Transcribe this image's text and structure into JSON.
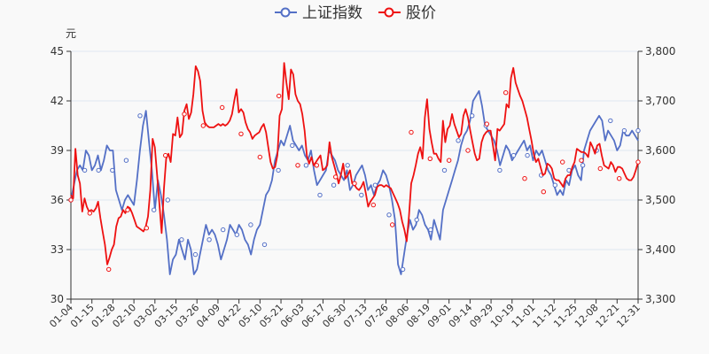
{
  "chart_data": {
    "type": "line",
    "title": "",
    "legend": [
      "上证指数",
      "股价"
    ],
    "left_axis_unit": "元",
    "left_ylim": [
      30,
      45
    ],
    "left_ticks": [
      "30",
      "33",
      "36",
      "39",
      "42",
      "45"
    ],
    "right_ylim": [
      3300,
      3800
    ],
    "right_ticks": [
      "3,300",
      "3,400",
      "3,500",
      "3,600",
      "3,700",
      "3,800"
    ],
    "x_labels": [
      "01-04",
      "01-15",
      "01-28",
      "02-10",
      "03-02",
      "03-15",
      "03-26",
      "04-09",
      "04-22",
      "05-10",
      "05-21",
      "06-03",
      "06-17",
      "06-30",
      "07-13",
      "07-26",
      "08-06",
      "08-19",
      "09-01",
      "09-14",
      "09-29",
      "10-19",
      "11-01",
      "11-12",
      "11-25",
      "12-08",
      "12-21",
      "12-31"
    ],
    "colors": {
      "index": "#5470c6",
      "price": "#ee1111"
    },
    "series": [
      {
        "name": "上证指数",
        "axis": "right",
        "values": [
          3500,
          3530,
          3560,
          3570,
          3560,
          3600,
          3590,
          3560,
          3570,
          3590,
          3560,
          3580,
          3610,
          3600,
          3600,
          3520,
          3500,
          3480,
          3500,
          3510,
          3500,
          3490,
          3540,
          3600,
          3650,
          3680,
          3620,
          3560,
          3480,
          3540,
          3510,
          3470,
          3420,
          3350,
          3380,
          3390,
          3420,
          3400,
          3380,
          3420,
          3400,
          3350,
          3360,
          3390,
          3420,
          3450,
          3430,
          3440,
          3430,
          3410,
          3380,
          3400,
          3420,
          3450,
          3440,
          3430,
          3450,
          3440,
          3420,
          3410,
          3390,
          3420,
          3440,
          3450,
          3480,
          3510,
          3520,
          3540,
          3580,
          3600,
          3620,
          3610,
          3630,
          3650,
          3620,
          3610,
          3600,
          3610,
          3590,
          3580,
          3600,
          3560,
          3530,
          3540,
          3550,
          3560,
          3600,
          3590,
          3580,
          3560,
          3550,
          3540,
          3560,
          3520,
          3530,
          3550,
          3560,
          3570,
          3550,
          3520,
          3530,
          3510,
          3530,
          3540,
          3560,
          3550,
          3530,
          3500,
          3460,
          3370,
          3350,
          3390,
          3430,
          3460,
          3440,
          3450,
          3480,
          3470,
          3450,
          3440,
          3420,
          3460,
          3440,
          3420,
          3480,
          3500,
          3520,
          3540,
          3560,
          3580,
          3610,
          3630,
          3640,
          3660,
          3700,
          3710,
          3720,
          3690,
          3650,
          3640,
          3630,
          3620,
          3600,
          3570,
          3590,
          3610,
          3600,
          3580,
          3590,
          3600,
          3610,
          3620,
          3600,
          3610,
          3580,
          3600,
          3590,
          3600,
          3580,
          3560,
          3550,
          3530,
          3510,
          3520,
          3510,
          3540,
          3530,
          3560,
          3570,
          3550,
          3540,
          3600,
          3620,
          3640,
          3650,
          3660,
          3670,
          3660,
          3620,
          3640,
          3630,
          3620,
          3600,
          3610,
          3640,
          3630,
          3630,
          3640,
          3630,
          3620
        ],
        "markers": [
          3500,
          3560,
          3560,
          3560,
          3580,
          3670,
          3480,
          3500,
          3420,
          3390,
          3420,
          3440,
          3430,
          3450,
          3410,
          3560,
          3610,
          3570,
          3510,
          3530,
          3570,
          3510,
          3530,
          3470,
          3360,
          3460,
          3440,
          3560,
          3620,
          3670,
          3650,
          3560,
          3590,
          3590,
          3550,
          3530,
          3560,
          3570,
          3600,
          3660,
          3640,
          3640
        ]
      },
      {
        "name": "股价",
        "axis": "left",
        "values": [
          36.3,
          36.1,
          39.1,
          37.5,
          37.0,
          35.3,
          36.1,
          35.6,
          35.3,
          35.4,
          35.3,
          35.5,
          35.9,
          34.9,
          34.1,
          33.3,
          32.1,
          32.5,
          33.0,
          33.3,
          34.4,
          34.9,
          35.0,
          35.4,
          35.2,
          35.6,
          35.5,
          35.2,
          34.8,
          34.4,
          34.3,
          34.2,
          34.1,
          34.4,
          35.0,
          36.6,
          39.7,
          39.2,
          37.5,
          35.8,
          34.0,
          36.7,
          38.5,
          38.8,
          38.3,
          40.0,
          39.9,
          41.0,
          39.8,
          40.0,
          41.4,
          41.8,
          40.9,
          41.3,
          42.4,
          44.1,
          43.8,
          43.2,
          41.4,
          40.7,
          40.5,
          40.4,
          40.4,
          40.4,
          40.5,
          40.6,
          40.5,
          40.6,
          40.5,
          40.6,
          40.8,
          41.2,
          42.0,
          42.7,
          41.3,
          41.5,
          41.3,
          40.7,
          40.3,
          40.1,
          39.7,
          39.9,
          40.0,
          40.1,
          40.4,
          40.6,
          40.1,
          39.2,
          38.3,
          37.9,
          38.0,
          38.7,
          41.1,
          41.5,
          44.3,
          43.1,
          42.1,
          43.9,
          43.6,
          42.4,
          42.0,
          41.8,
          41.2,
          40.2,
          38.7,
          38.2,
          38.6,
          38.1,
          38.3,
          38.5,
          38.7,
          37.8,
          37.9,
          38.1,
          39.5,
          38.6,
          38.1,
          37.6,
          37.0,
          37.5,
          38.2,
          37.3,
          37.5,
          37.8,
          37.0,
          36.9,
          36.7,
          36.6,
          36.8,
          37.1,
          36.4,
          35.6,
          35.9,
          36.1,
          36.3,
          36.8,
          36.9,
          36.9,
          36.8,
          36.9,
          36.8,
          36.7,
          36.4,
          36.1,
          35.8,
          35.4,
          34.7,
          34.2,
          33.5,
          35.0,
          37.0,
          37.5,
          38.1,
          38.8,
          39.2,
          38.5,
          41.0,
          42.1,
          40.3,
          39.5,
          38.8,
          38.8,
          38.5,
          38.3,
          40.8,
          39.5,
          40.3,
          40.5,
          41.2,
          40.6,
          40.2,
          39.8,
          40.0,
          41.1,
          41.5,
          41.0,
          40.2,
          39.5,
          38.8,
          38.4,
          38.5,
          39.5,
          39.9,
          40.1,
          40.2,
          40.2,
          39.3,
          38.4,
          40.3,
          40.2,
          40.4,
          40.6,
          41.8,
          41.6,
          43.4,
          44.0,
          43.1,
          42.7,
          42.3,
          42.0,
          41.5,
          41.0,
          40.3,
          39.6,
          38.8,
          38.3,
          38.5,
          38.0,
          37.5,
          37.6,
          38.2,
          38.1,
          37.9,
          37.3,
          37.2,
          37.2,
          37.0,
          36.8,
          37.3,
          37.5,
          37.5,
          38.0,
          38.3,
          39.1,
          39.0,
          38.9,
          38.9,
          38.8,
          38.6,
          39.5,
          39.2,
          38.8,
          39.3,
          39.4,
          38.7,
          38.1,
          38.0,
          37.9,
          38.3,
          38.1,
          37.7,
          38.0,
          38.0,
          37.9,
          37.6,
          37.3,
          37.2,
          37.2,
          37.4,
          37.8,
          38.3
        ],
        "markers": [
          36.0,
          35.2,
          31.8,
          35.4,
          34.3,
          38.7,
          41.2,
          40.5,
          41.6,
          40.0,
          38.6,
          42.3,
          38.1,
          38.1,
          37.4,
          37.0,
          35.7,
          34.5,
          40.1,
          38.5,
          38.4,
          39.0,
          40.6,
          42.5,
          37.3,
          36.5,
          38.3,
          38.4,
          37.9,
          37.3,
          38.3
        ]
      }
    ]
  }
}
